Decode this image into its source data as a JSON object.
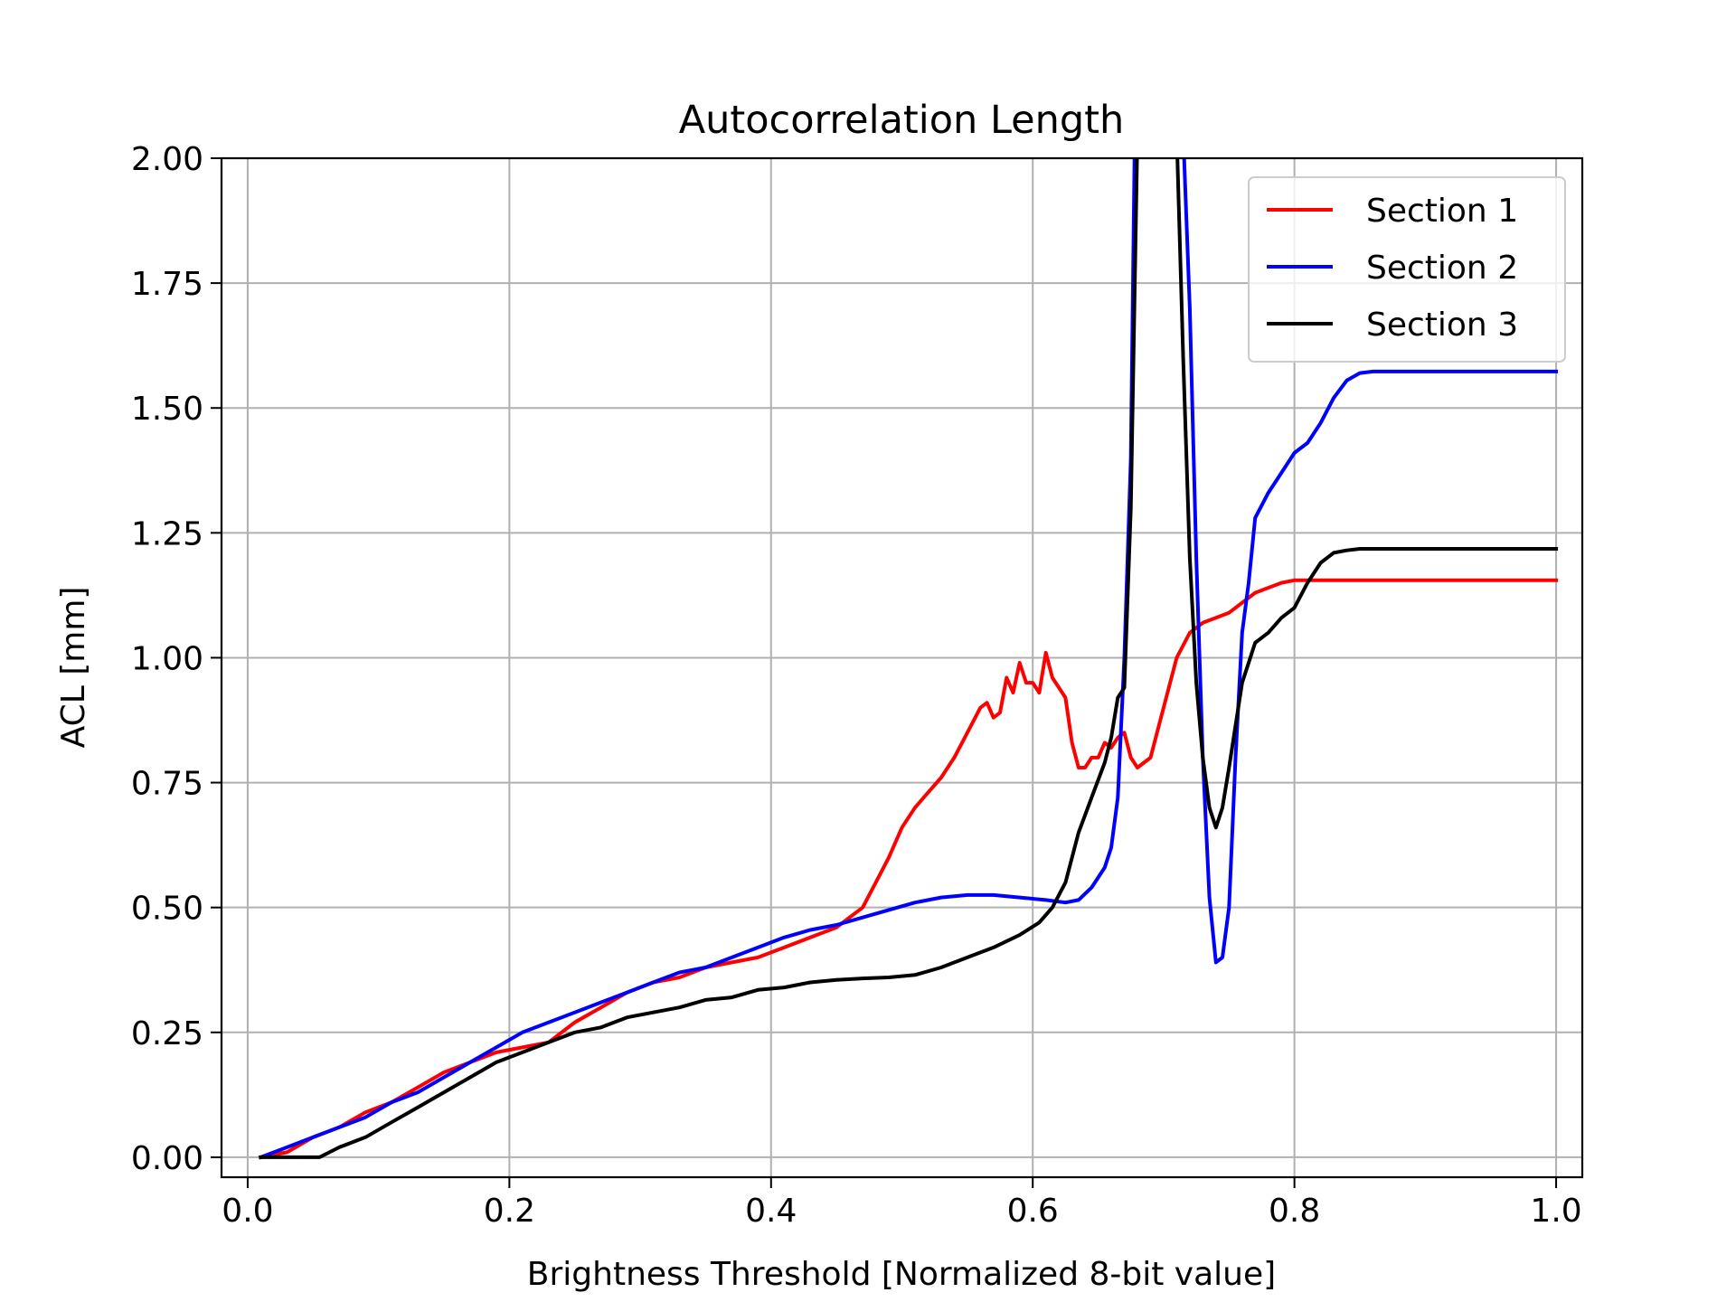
{
  "chart_data": {
    "type": "line",
    "title": "Autocorrelation Length",
    "xlabel": "Brightness Threshold [Normalized 8-bit value]",
    "ylabel": "ACL [mm]",
    "xlim": [
      -0.02,
      1.02
    ],
    "ylim": [
      -0.04,
      2.0
    ],
    "xticks": [
      0.0,
      0.2,
      0.4,
      0.6,
      0.8,
      1.0
    ],
    "xtick_labels": [
      "0.0",
      "0.2",
      "0.4",
      "0.6",
      "0.8",
      "1.0"
    ],
    "yticks": [
      0.0,
      0.25,
      0.5,
      0.75,
      1.0,
      1.25,
      1.5,
      1.75,
      2.0
    ],
    "ytick_labels": [
      "0.00",
      "0.25",
      "0.50",
      "0.75",
      "1.00",
      "1.25",
      "1.50",
      "1.75",
      "2.00"
    ],
    "grid": true,
    "legend_position": "upper right",
    "series": [
      {
        "name": "Section 1",
        "color": "#ff0000",
        "points": [
          [
            0.01,
            0.0
          ],
          [
            0.03,
            0.01
          ],
          [
            0.05,
            0.04
          ],
          [
            0.07,
            0.06
          ],
          [
            0.09,
            0.09
          ],
          [
            0.11,
            0.11
          ],
          [
            0.13,
            0.14
          ],
          [
            0.15,
            0.17
          ],
          [
            0.17,
            0.19
          ],
          [
            0.19,
            0.21
          ],
          [
            0.21,
            0.22
          ],
          [
            0.23,
            0.23
          ],
          [
            0.25,
            0.27
          ],
          [
            0.27,
            0.3
          ],
          [
            0.29,
            0.33
          ],
          [
            0.31,
            0.35
          ],
          [
            0.33,
            0.36
          ],
          [
            0.35,
            0.38
          ],
          [
            0.37,
            0.39
          ],
          [
            0.39,
            0.4
          ],
          [
            0.41,
            0.42
          ],
          [
            0.43,
            0.44
          ],
          [
            0.45,
            0.46
          ],
          [
            0.46,
            0.48
          ],
          [
            0.47,
            0.5
          ],
          [
            0.48,
            0.55
          ],
          [
            0.49,
            0.6
          ],
          [
            0.5,
            0.66
          ],
          [
            0.51,
            0.7
          ],
          [
            0.52,
            0.73
          ],
          [
            0.53,
            0.76
          ],
          [
            0.54,
            0.8
          ],
          [
            0.55,
            0.85
          ],
          [
            0.56,
            0.9
          ],
          [
            0.565,
            0.91
          ],
          [
            0.57,
            0.88
          ],
          [
            0.575,
            0.89
          ],
          [
            0.58,
            0.96
          ],
          [
            0.585,
            0.93
          ],
          [
            0.59,
            0.99
          ],
          [
            0.595,
            0.95
          ],
          [
            0.6,
            0.95
          ],
          [
            0.605,
            0.93
          ],
          [
            0.61,
            1.01
          ],
          [
            0.615,
            0.96
          ],
          [
            0.625,
            0.92
          ],
          [
            0.63,
            0.83
          ],
          [
            0.635,
            0.78
          ],
          [
            0.64,
            0.78
          ],
          [
            0.645,
            0.8
          ],
          [
            0.65,
            0.8
          ],
          [
            0.655,
            0.83
          ],
          [
            0.66,
            0.82
          ],
          [
            0.665,
            0.84
          ],
          [
            0.67,
            0.85
          ],
          [
            0.675,
            0.8
          ],
          [
            0.68,
            0.78
          ],
          [
            0.69,
            0.8
          ],
          [
            0.7,
            0.9
          ],
          [
            0.71,
            1.0
          ],
          [
            0.72,
            1.05
          ],
          [
            0.73,
            1.07
          ],
          [
            0.75,
            1.09
          ],
          [
            0.77,
            1.13
          ],
          [
            0.79,
            1.15
          ],
          [
            0.8,
            1.155
          ],
          [
            1.0,
            1.155
          ]
        ]
      },
      {
        "name": "Section 2",
        "color": "#0000ff",
        "points": [
          [
            0.01,
            0.0
          ],
          [
            0.03,
            0.02
          ],
          [
            0.05,
            0.04
          ],
          [
            0.07,
            0.06
          ],
          [
            0.09,
            0.08
          ],
          [
            0.11,
            0.11
          ],
          [
            0.13,
            0.13
          ],
          [
            0.15,
            0.16
          ],
          [
            0.17,
            0.19
          ],
          [
            0.19,
            0.22
          ],
          [
            0.21,
            0.25
          ],
          [
            0.23,
            0.27
          ],
          [
            0.25,
            0.29
          ],
          [
            0.27,
            0.31
          ],
          [
            0.29,
            0.33
          ],
          [
            0.31,
            0.35
          ],
          [
            0.33,
            0.37
          ],
          [
            0.35,
            0.38
          ],
          [
            0.37,
            0.4
          ],
          [
            0.39,
            0.42
          ],
          [
            0.41,
            0.44
          ],
          [
            0.43,
            0.455
          ],
          [
            0.45,
            0.465
          ],
          [
            0.47,
            0.48
          ],
          [
            0.49,
            0.495
          ],
          [
            0.51,
            0.51
          ],
          [
            0.53,
            0.52
          ],
          [
            0.55,
            0.525
          ],
          [
            0.57,
            0.525
          ],
          [
            0.59,
            0.52
          ],
          [
            0.61,
            0.515
          ],
          [
            0.625,
            0.51
          ],
          [
            0.635,
            0.515
          ],
          [
            0.645,
            0.54
          ],
          [
            0.655,
            0.58
          ],
          [
            0.66,
            0.62
          ],
          [
            0.665,
            0.72
          ],
          [
            0.67,
            1.0
          ],
          [
            0.675,
            1.4
          ],
          [
            0.678,
            2.05
          ],
          [
            0.715,
            2.05
          ],
          [
            0.72,
            1.7
          ],
          [
            0.725,
            1.2
          ],
          [
            0.73,
            0.8
          ],
          [
            0.735,
            0.52
          ],
          [
            0.74,
            0.39
          ],
          [
            0.745,
            0.4
          ],
          [
            0.75,
            0.5
          ],
          [
            0.755,
            0.8
          ],
          [
            0.76,
            1.05
          ],
          [
            0.765,
            1.15
          ],
          [
            0.77,
            1.28
          ],
          [
            0.78,
            1.33
          ],
          [
            0.79,
            1.37
          ],
          [
            0.8,
            1.41
          ],
          [
            0.81,
            1.43
          ],
          [
            0.82,
            1.47
          ],
          [
            0.83,
            1.52
          ],
          [
            0.84,
            1.555
          ],
          [
            0.85,
            1.57
          ],
          [
            0.86,
            1.573
          ],
          [
            1.0,
            1.573
          ]
        ]
      },
      {
        "name": "Section 3",
        "color": "#000000",
        "points": [
          [
            0.01,
            0.0
          ],
          [
            0.055,
            0.0
          ],
          [
            0.07,
            0.02
          ],
          [
            0.09,
            0.04
          ],
          [
            0.11,
            0.07
          ],
          [
            0.13,
            0.1
          ],
          [
            0.15,
            0.13
          ],
          [
            0.17,
            0.16
          ],
          [
            0.19,
            0.19
          ],
          [
            0.21,
            0.21
          ],
          [
            0.23,
            0.23
          ],
          [
            0.25,
            0.25
          ],
          [
            0.27,
            0.26
          ],
          [
            0.29,
            0.28
          ],
          [
            0.31,
            0.29
          ],
          [
            0.33,
            0.3
          ],
          [
            0.35,
            0.315
          ],
          [
            0.37,
            0.32
          ],
          [
            0.39,
            0.335
          ],
          [
            0.41,
            0.34
          ],
          [
            0.43,
            0.35
          ],
          [
            0.45,
            0.355
          ],
          [
            0.47,
            0.358
          ],
          [
            0.49,
            0.36
          ],
          [
            0.51,
            0.365
          ],
          [
            0.53,
            0.38
          ],
          [
            0.55,
            0.4
          ],
          [
            0.57,
            0.42
          ],
          [
            0.59,
            0.445
          ],
          [
            0.605,
            0.47
          ],
          [
            0.615,
            0.5
          ],
          [
            0.625,
            0.55
          ],
          [
            0.635,
            0.65
          ],
          [
            0.645,
            0.72
          ],
          [
            0.655,
            0.79
          ],
          [
            0.66,
            0.84
          ],
          [
            0.665,
            0.92
          ],
          [
            0.67,
            0.94
          ],
          [
            0.675,
            1.3
          ],
          [
            0.68,
            2.05
          ],
          [
            0.71,
            2.05
          ],
          [
            0.715,
            1.6
          ],
          [
            0.72,
            1.2
          ],
          [
            0.725,
            0.95
          ],
          [
            0.73,
            0.8
          ],
          [
            0.735,
            0.7
          ],
          [
            0.74,
            0.66
          ],
          [
            0.745,
            0.7
          ],
          [
            0.75,
            0.78
          ],
          [
            0.76,
            0.95
          ],
          [
            0.77,
            1.03
          ],
          [
            0.78,
            1.05
          ],
          [
            0.79,
            1.08
          ],
          [
            0.8,
            1.1
          ],
          [
            0.81,
            1.15
          ],
          [
            0.82,
            1.19
          ],
          [
            0.83,
            1.21
          ],
          [
            0.84,
            1.215
          ],
          [
            0.85,
            1.218
          ],
          [
            1.0,
            1.218
          ]
        ]
      }
    ]
  }
}
